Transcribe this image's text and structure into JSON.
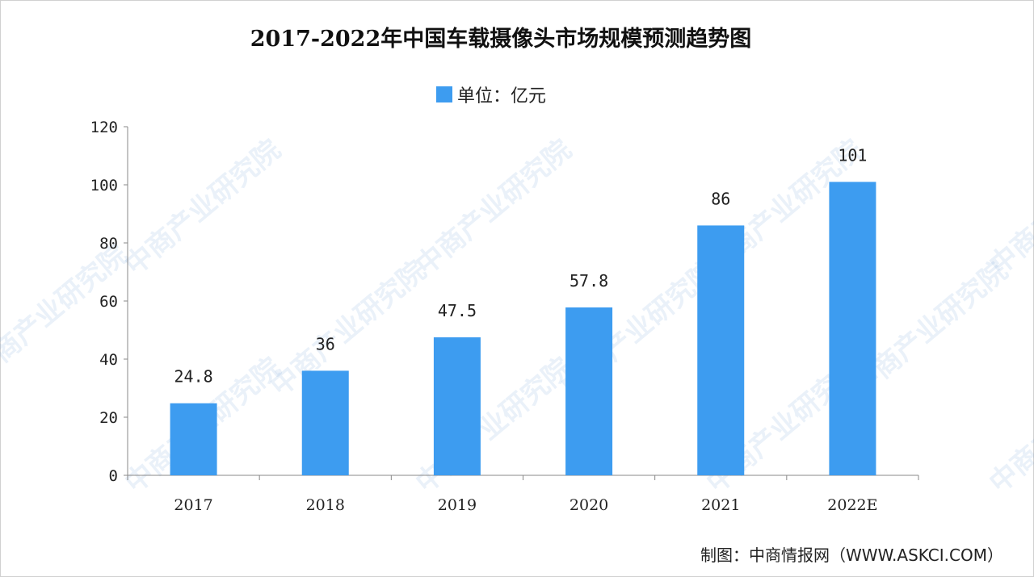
{
  "watermark": "中商产业研究院",
  "source": "制图：中商情报网（WWW.ASKCI.COM）",
  "chart_data": {
    "type": "bar",
    "title": "2017-2022年中国车载摄像头市场规模预测趋势图",
    "legend": "单位：亿元",
    "legend_position": "top-center",
    "categories": [
      "2017",
      "2018",
      "2019",
      "2020",
      "2021",
      "2022E"
    ],
    "values": [
      24.8,
      36,
      47.5,
      57.8,
      86,
      101
    ],
    "labels": [
      "24.8",
      "36",
      "47.5",
      "57.8",
      "86",
      "101"
    ],
    "yticks": [
      0,
      20,
      40,
      60,
      80,
      100,
      120
    ],
    "ylim": [
      0,
      120
    ],
    "xlabel": "",
    "ylabel": "",
    "grid": false,
    "color": "#3d9cf0"
  }
}
